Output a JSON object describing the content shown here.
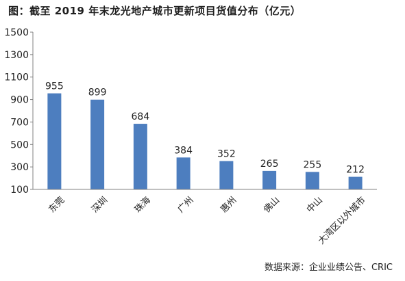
{
  "title": "图：截至 2019 年末龙光地产城市更新项目货值分布（亿元）",
  "source": "数据来源：企业业绩公告、CRIC",
  "colors": {
    "bar": "#4d7ebf",
    "axis": "#808080",
    "text": "#222222"
  },
  "chart_data": {
    "type": "bar",
    "title": "图：截至 2019 年末龙光地产城市更新项目货值分布（亿元）",
    "categories": [
      "东莞",
      "深圳",
      "珠海",
      "广州",
      "惠州",
      "佛山",
      "中山",
      "大湾区以外城市"
    ],
    "values": [
      955,
      899,
      684,
      384,
      352,
      265,
      255,
      212
    ],
    "y_ticks": [
      100,
      300,
      500,
      700,
      900,
      1100,
      1300,
      1500
    ],
    "ylim": [
      100,
      1500
    ],
    "xlabel": "",
    "ylabel": "",
    "grid": false,
    "legend": "none"
  }
}
